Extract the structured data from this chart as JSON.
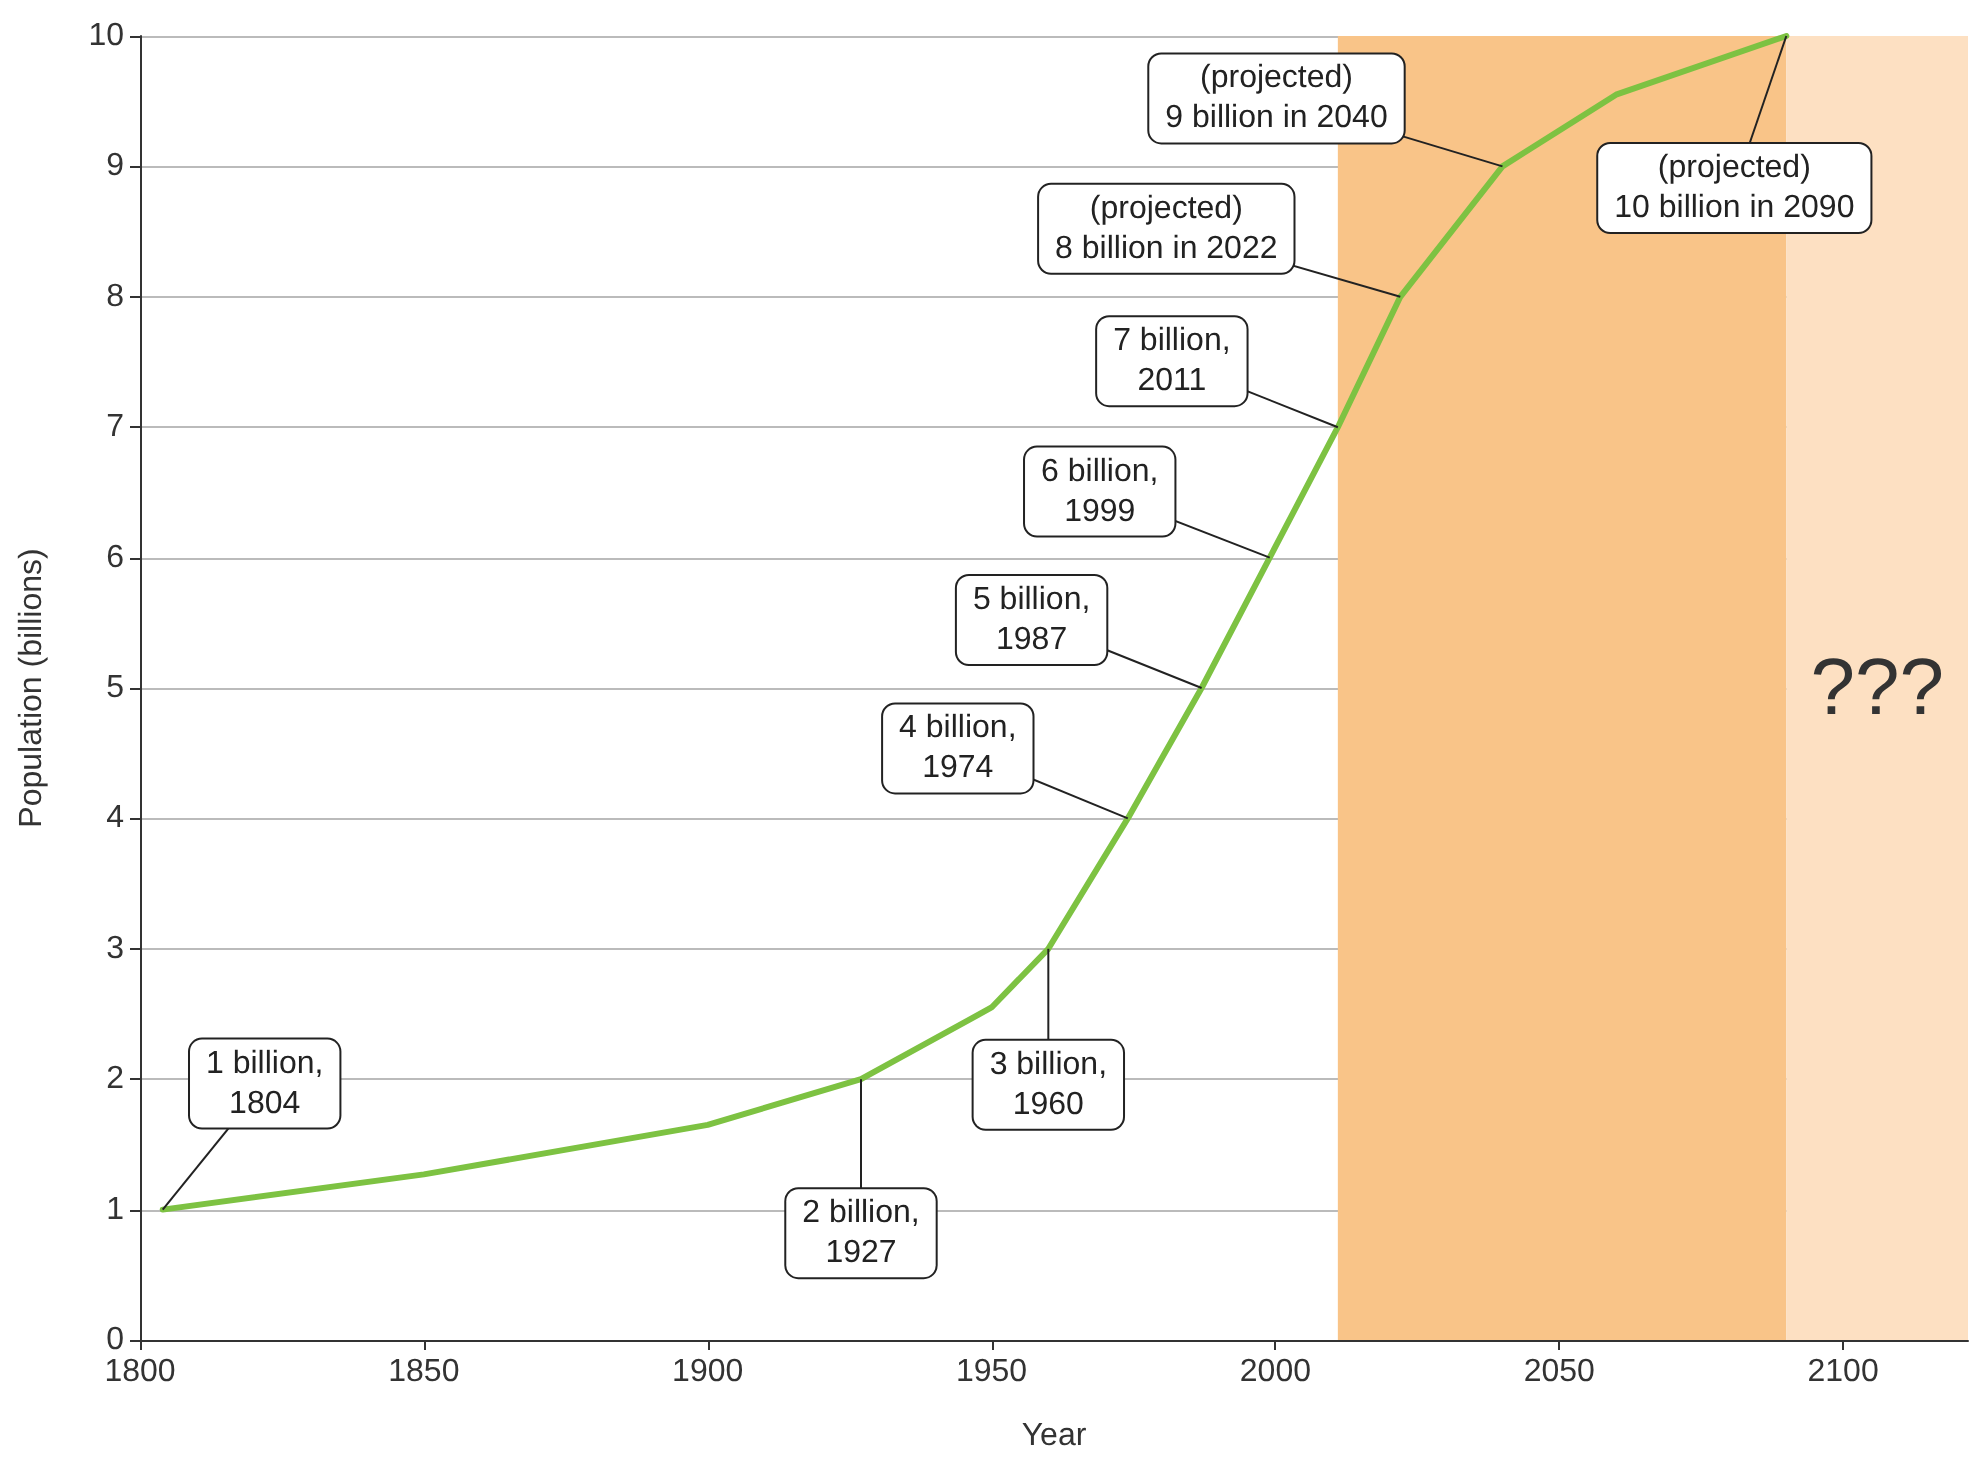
{
  "chart_data": {
    "type": "line",
    "xlabel": "Year",
    "ylabel": "Population (billions)",
    "x": [
      1804,
      1850,
      1900,
      1927,
      1950,
      1960,
      1974,
      1987,
      1999,
      2011,
      2022,
      2040,
      2060,
      2090
    ],
    "series": [
      {
        "color": "#7dc242",
        "values": [
          1,
          1.27,
          1.65,
          2,
          2.55,
          3,
          4,
          5,
          6,
          7,
          8,
          9,
          9.55,
          10
        ]
      }
    ],
    "xlim": [
      1800,
      2122
    ],
    "xticks": [
      1800,
      1850,
      1900,
      1950,
      2000,
      2050,
      2100
    ],
    "ylim": [
      0,
      10
    ],
    "yticks": [
      0,
      1,
      2,
      3,
      4,
      5,
      6,
      7,
      8,
      9,
      10
    ],
    "grid": "y",
    "marker": "none",
    "bands": [
      {
        "axis": "x",
        "from": 2011,
        "to": 2090,
        "color": "#f9c488"
      },
      {
        "axis": "x",
        "from": 2090,
        "to": 2122,
        "color": "#fde0c2",
        "label": "???"
      }
    ],
    "annotations": [
      {
        "text": "1 billion,\n1804",
        "x": 1804,
        "y": 1
      },
      {
        "text": "2 billion,\n1927",
        "x": 1927,
        "y": 2
      },
      {
        "text": "3 billion,\n1960",
        "x": 1960,
        "y": 3
      },
      {
        "text": "4 billion,\n1974",
        "x": 1974,
        "y": 4
      },
      {
        "text": "5 billion,\n1987",
        "x": 1987,
        "y": 5
      },
      {
        "text": "6 billion,\n1999",
        "x": 1999,
        "y": 6
      },
      {
        "text": "7 billion,\n2011",
        "x": 2011,
        "y": 7
      },
      {
        "text": "(projected)\n8 billion in 2022",
        "x": 2022,
        "y": 8
      },
      {
        "text": "(projected)\n9 billion in 2040",
        "x": 2040,
        "y": 9
      },
      {
        "text": "(projected)\n10 billion in 2090",
        "x": 2090,
        "y": 10
      }
    ]
  }
}
